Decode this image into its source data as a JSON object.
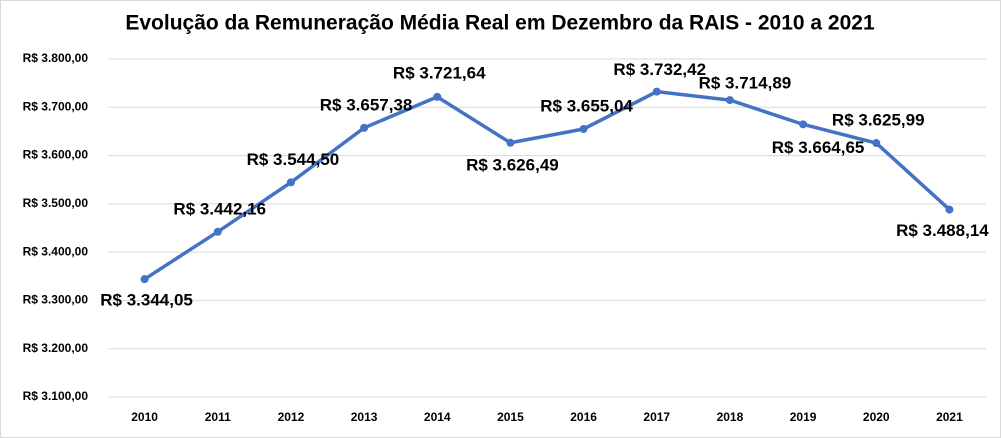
{
  "chart_data": {
    "type": "line",
    "title": "Evolução da Remuneração Média Real em Dezembro da RAIS - 2010 a 2021",
    "categories": [
      "2010",
      "2011",
      "2012",
      "2013",
      "2014",
      "2015",
      "2016",
      "2017",
      "2018",
      "2019",
      "2020",
      "2021"
    ],
    "series": [
      {
        "color": "#4472c4",
        "values": [
          3344.05,
          3442.16,
          3544.5,
          3657.38,
          3721.64,
          3626.49,
          3655.04,
          3732.42,
          3714.89,
          3664.65,
          3625.99,
          3488.14
        ],
        "value_labels": [
          "R$ 3.344,05",
          "R$ 3.442,16",
          "R$ 3.544,50",
          "R$ 3.657,38",
          "R$ 3.721,64",
          "R$ 3.626,49",
          "R$ 3.655,04",
          "R$ 3.732,42",
          "R$ 3.714,89",
          "R$ 3.664,65",
          "R$ 3.625,99",
          "R$ 3.488,14"
        ]
      }
    ],
    "ylim": [
      3100,
      3800
    ],
    "yticks": [
      {
        "value": 3100,
        "label": "R$ 3.100,00"
      },
      {
        "value": 3200,
        "label": "R$ 3.200,00"
      },
      {
        "value": 3300,
        "label": "R$ 3.300,00"
      },
      {
        "value": 3400,
        "label": "R$ 3.400,00"
      },
      {
        "value": 3500,
        "label": "R$ 3.500,00"
      },
      {
        "value": 3600,
        "label": "R$ 3.600,00"
      },
      {
        "value": 3700,
        "label": "R$ 3.700,00"
      },
      {
        "value": 3800,
        "label": "R$ 3.800,00"
      }
    ],
    "grid": true
  }
}
